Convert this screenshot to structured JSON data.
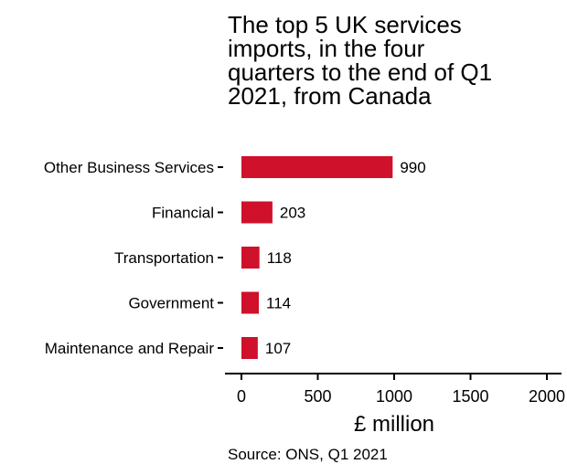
{
  "chart_data": {
    "type": "bar",
    "orientation": "horizontal",
    "title": "The top 5 UK services\nimports, in the four\nquarters to the end of Q1\n2021, from Canada",
    "categories": [
      "Other Business Services",
      "Financial",
      "Transportation",
      "Government",
      "Maintenance and Repair"
    ],
    "values": [
      990,
      203,
      118,
      114,
      107
    ],
    "value_labels": [
      "990",
      "203",
      "118",
      "114",
      "107"
    ],
    "xlabel": "£ million",
    "ylabel": "",
    "xlim": [
      0,
      2000
    ],
    "xticks": [
      "0",
      "500",
      "1000",
      "1500",
      "2000"
    ],
    "bar_color": "#d0112b",
    "grid": false,
    "legend": "none"
  },
  "source": "Source: ONS, Q1 2021"
}
